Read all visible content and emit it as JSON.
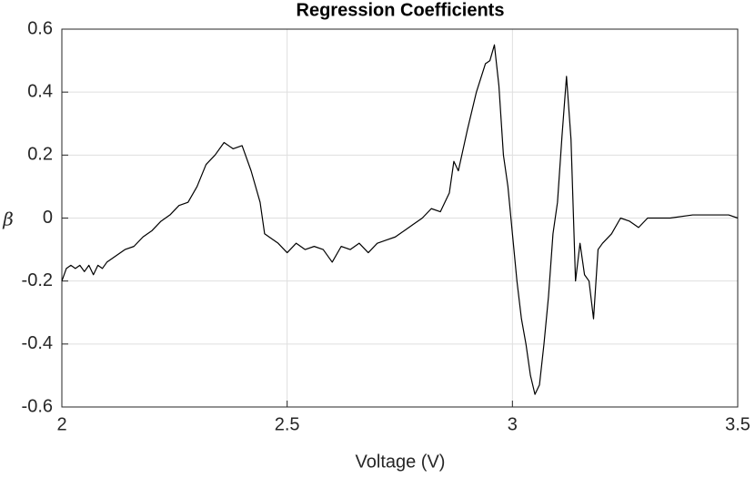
{
  "chart_data": {
    "type": "line",
    "title": "Regression Coefficients",
    "x_label": "Voltage (V)",
    "y_label": "β",
    "xlim": [
      2,
      3.5
    ],
    "xticks": [
      2,
      2.5,
      3,
      3.5
    ],
    "ylim": [
      -0.6,
      0.6
    ],
    "yticks": [
      -0.6,
      -0.4,
      -0.2,
      0,
      0.2,
      0.4,
      0.6
    ],
    "grid": true,
    "series": [
      {
        "color": "#000000",
        "x": [
          2.0,
          2.01,
          2.02,
          2.03,
          2.04,
          2.05,
          2.06,
          2.07,
          2.08,
          2.09,
          2.1,
          2.12,
          2.14,
          2.16,
          2.18,
          2.2,
          2.22,
          2.24,
          2.26,
          2.28,
          2.3,
          2.32,
          2.34,
          2.36,
          2.38,
          2.4,
          2.42,
          2.44,
          2.45,
          2.46,
          2.48,
          2.5,
          2.52,
          2.54,
          2.56,
          2.58,
          2.6,
          2.62,
          2.64,
          2.66,
          2.68,
          2.7,
          2.72,
          2.74,
          2.76,
          2.78,
          2.8,
          2.82,
          2.84,
          2.86,
          2.87,
          2.88,
          2.9,
          2.92,
          2.94,
          2.95,
          2.96,
          2.97,
          2.98,
          2.99,
          3.0,
          3.01,
          3.02,
          3.03,
          3.04,
          3.05,
          3.06,
          3.07,
          3.08,
          3.09,
          3.1,
          3.11,
          3.12,
          3.13,
          3.14,
          3.15,
          3.16,
          3.17,
          3.18,
          3.19,
          3.2,
          3.22,
          3.24,
          3.26,
          3.28,
          3.3,
          3.35,
          3.4,
          3.45,
          3.48,
          3.5
        ],
        "values": [
          -0.2,
          -0.16,
          -0.15,
          -0.16,
          -0.15,
          -0.17,
          -0.15,
          -0.18,
          -0.15,
          -0.16,
          -0.14,
          -0.12,
          -0.1,
          -0.09,
          -0.06,
          -0.04,
          -0.01,
          0.01,
          0.04,
          0.05,
          0.1,
          0.17,
          0.2,
          0.24,
          0.22,
          0.23,
          0.15,
          0.05,
          -0.05,
          -0.06,
          -0.08,
          -0.11,
          -0.08,
          -0.1,
          -0.09,
          -0.1,
          -0.14,
          -0.09,
          -0.1,
          -0.08,
          -0.11,
          -0.08,
          -0.07,
          -0.06,
          -0.04,
          -0.02,
          0.0,
          0.03,
          0.02,
          0.08,
          0.18,
          0.15,
          0.28,
          0.4,
          0.49,
          0.5,
          0.55,
          0.42,
          0.2,
          0.1,
          -0.05,
          -0.2,
          -0.32,
          -0.4,
          -0.5,
          -0.56,
          -0.53,
          -0.4,
          -0.25,
          -0.05,
          0.05,
          0.26,
          0.45,
          0.25,
          -0.2,
          -0.08,
          -0.18,
          -0.2,
          -0.32,
          -0.1,
          -0.08,
          -0.05,
          0.0,
          -0.01,
          -0.03,
          0.0,
          0.0,
          0.01,
          0.01,
          0.01,
          0.0
        ]
      }
    ]
  }
}
